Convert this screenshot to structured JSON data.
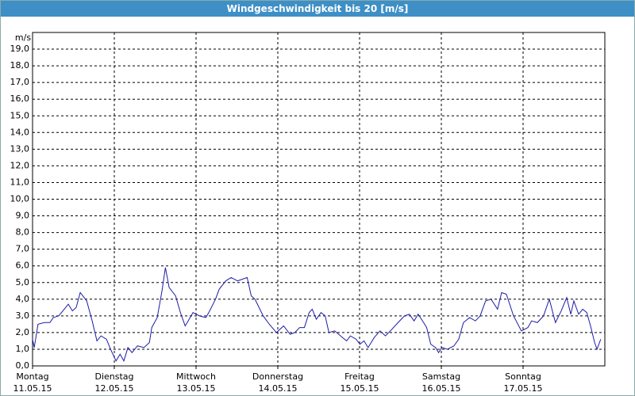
{
  "chart_data": {
    "type": "line",
    "title": "Windgeschwindigkeit bis 20 [m/s]",
    "ylabel": "m/s",
    "xlim": [
      0,
      168
    ],
    "ylim": [
      0,
      20
    ],
    "grid": true,
    "xticks": [
      {
        "value": 0,
        "label": "Montag",
        "date": "11.05.15"
      },
      {
        "value": 24,
        "label": "Dienstag",
        "date": "12.05.15"
      },
      {
        "value": 48,
        "label": "Mittwoch",
        "date": "13.05.15"
      },
      {
        "value": 72,
        "label": "Donnerstag",
        "date": "14.05.15"
      },
      {
        "value": 96,
        "label": "Freitag",
        "date": "15.05.15"
      },
      {
        "value": 120,
        "label": "Samstag",
        "date": "16.05.15"
      },
      {
        "value": 144,
        "label": "Sonntag",
        "date": "17.05.15"
      }
    ],
    "yticks": [
      {
        "value": 0,
        "label": "0,0"
      },
      {
        "value": 1,
        "label": "1,0"
      },
      {
        "value": 2,
        "label": "2,0"
      },
      {
        "value": 3,
        "label": "3,0"
      },
      {
        "value": 4,
        "label": "4,0"
      },
      {
        "value": 5,
        "label": "5,0"
      },
      {
        "value": 6,
        "label": "6,0"
      },
      {
        "value": 7,
        "label": "7,0"
      },
      {
        "value": 8,
        "label": "8,0"
      },
      {
        "value": 9,
        "label": "9,0"
      },
      {
        "value": 10,
        "label": "10,0"
      },
      {
        "value": 11,
        "label": "11,0"
      },
      {
        "value": 12,
        "label": "12,0"
      },
      {
        "value": 13,
        "label": "13,0"
      },
      {
        "value": 14,
        "label": "14,0"
      },
      {
        "value": 15,
        "label": "15,0"
      },
      {
        "value": 16,
        "label": "16,0"
      },
      {
        "value": 17,
        "label": "17,0"
      },
      {
        "value": 18,
        "label": "18,0"
      },
      {
        "value": 19,
        "label": "19,0"
      }
    ],
    "series": [
      {
        "name": "Windgeschwindigkeit",
        "color": "#1c1ca8",
        "x": [
          0,
          0.5,
          1.6,
          3.5,
          5.1,
          6.1,
          7.7,
          9.3,
          10.5,
          11.7,
          12.8,
          14,
          15.9,
          17.5,
          18.9,
          20.1,
          21.7,
          22.9,
          24.5,
          25.7,
          26.8,
          28,
          29.2,
          30.8,
          32.7,
          34.3,
          35,
          36.6,
          38,
          39,
          40.1,
          42,
          43.4,
          44.8,
          45.7,
          47.1,
          49,
          50.9,
          52,
          53.7,
          54.8,
          56.7,
          58.3,
          60.2,
          63,
          64.2,
          65.3,
          67.7,
          69.5,
          71.6,
          73.7,
          75.6,
          77,
          78.4,
          79.8,
          81.2,
          82.1,
          83.3,
          84.7,
          85.9,
          87,
          88.7,
          91,
          92.2,
          93.3,
          95,
          96.1,
          97.3,
          98.5,
          100.3,
          102,
          103.6,
          105.5,
          107.3,
          109.2,
          110.6,
          112,
          113.2,
          114.8,
          115.7,
          116.9,
          118.3,
          119.2,
          120.2,
          121.8,
          123.7,
          125.1,
          126.5,
          128.3,
          130,
          131.4,
          133,
          134.6,
          136.5,
          137.7,
          139.1,
          141.2,
          143.5,
          145.4,
          146.5,
          148.2,
          150,
          151.7,
          153.5,
          155.2,
          156.8,
          158,
          158.9,
          160.3,
          161.5,
          162.7,
          163.8,
          165,
          165.7,
          166.8
        ],
        "values": [
          1.6,
          1.1,
          2.5,
          2.6,
          2.6,
          2.9,
          3.0,
          3.4,
          3.7,
          3.3,
          3.5,
          4.4,
          3.9,
          2.7,
          1.5,
          1.8,
          1.6,
          1.0,
          0.3,
          0.7,
          0.3,
          1.1,
          0.8,
          1.2,
          1.1,
          1.4,
          2.3,
          2.9,
          4.5,
          5.9,
          4.7,
          4.2,
          3.2,
          2.4,
          2.7,
          3.2,
          3.0,
          2.9,
          3.3,
          4.0,
          4.6,
          5.1,
          5.3,
          5.1,
          5.3,
          4.2,
          4.0,
          3.0,
          2.5,
          2.0,
          2.4,
          1.9,
          2.0,
          2.3,
          2.3,
          3.2,
          3.4,
          2.8,
          3.2,
          3.0,
          2.0,
          2.1,
          1.7,
          1.5,
          1.8,
          1.6,
          1.3,
          1.5,
          1.1,
          1.7,
          2.1,
          1.8,
          2.2,
          2.6,
          3.0,
          3.1,
          2.7,
          3.1,
          2.6,
          2.3,
          1.3,
          1.1,
          0.8,
          1.1,
          1.0,
          1.2,
          1.6,
          2.6,
          2.9,
          2.7,
          3.0,
          3.9,
          4.0,
          3.4,
          4.4,
          4.3,
          3.0,
          2.1,
          2.3,
          2.7,
          2.6,
          3.0,
          4.0,
          2.6,
          3.3,
          4.1,
          3.1,
          3.9,
          3.1,
          3.4,
          3.2,
          2.4,
          1.4,
          1.0,
          1.6
        ]
      }
    ]
  }
}
